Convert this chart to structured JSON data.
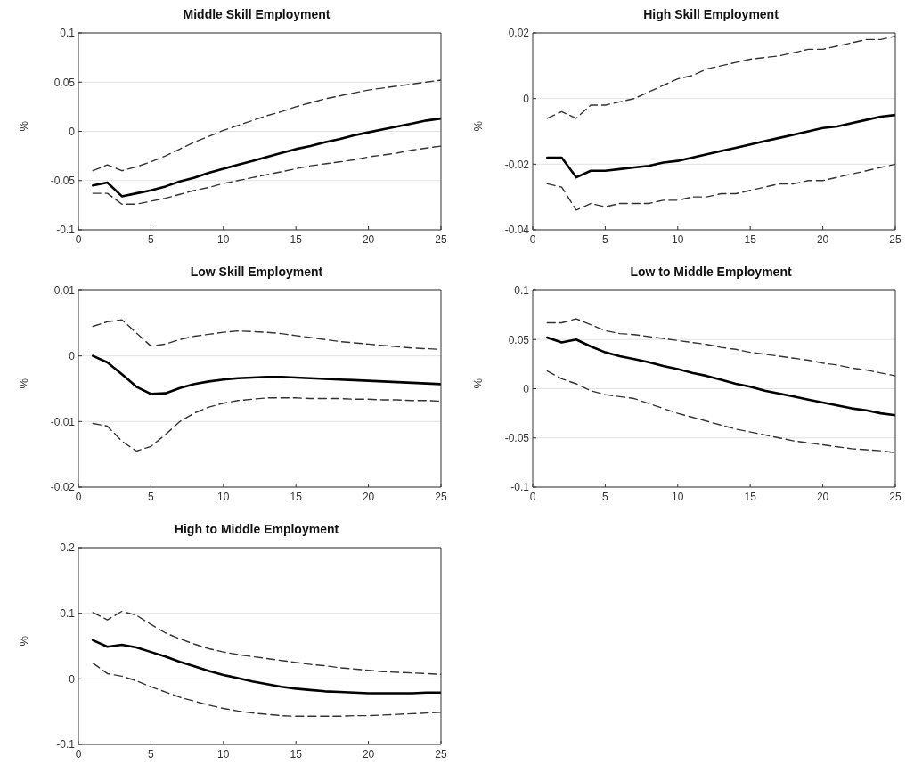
{
  "chart_data": [
    {
      "type": "line",
      "title": "Middle Skill Employment",
      "ylabel": "%",
      "x": [
        1,
        2,
        3,
        4,
        5,
        6,
        7,
        8,
        9,
        10,
        11,
        12,
        13,
        14,
        15,
        16,
        17,
        18,
        19,
        20,
        21,
        22,
        23,
        24,
        25
      ],
      "xlim": [
        0,
        25
      ],
      "xticks": [
        0,
        5,
        10,
        15,
        20,
        25
      ],
      "ylim": [
        -0.1,
        0.1
      ],
      "yticks": [
        -0.1,
        -0.05,
        0,
        0.05,
        0.1
      ],
      "grid": "y",
      "legend": false,
      "series": [
        {
          "type": "line",
          "line_style": "dashed",
          "color": "#333333",
          "values": [
            -0.04,
            -0.034,
            -0.04,
            -0.036,
            -0.031,
            -0.025,
            -0.018,
            -0.011,
            -0.005,
            0.001,
            0.006,
            0.011,
            0.016,
            0.02,
            0.025,
            0.029,
            0.033,
            0.036,
            0.039,
            0.042,
            0.044,
            0.046,
            0.048,
            0.05,
            0.052
          ]
        },
        {
          "type": "line",
          "line_style": "solid",
          "color": "#000000",
          "values": [
            -0.055,
            -0.052,
            -0.066,
            -0.063,
            -0.06,
            -0.056,
            -0.051,
            -0.047,
            -0.042,
            -0.038,
            -0.034,
            -0.03,
            -0.026,
            -0.022,
            -0.018,
            -0.015,
            -0.011,
            -0.008,
            -0.004,
            -0.001,
            0.002,
            0.005,
            0.008,
            0.011,
            0.013
          ]
        },
        {
          "type": "line",
          "line_style": "dashed",
          "color": "#333333",
          "values": [
            -0.063,
            -0.063,
            -0.074,
            -0.074,
            -0.071,
            -0.068,
            -0.064,
            -0.06,
            -0.057,
            -0.053,
            -0.05,
            -0.047,
            -0.044,
            -0.041,
            -0.038,
            -0.035,
            -0.033,
            -0.031,
            -0.029,
            -0.026,
            -0.024,
            -0.022,
            -0.019,
            -0.017,
            -0.015
          ]
        }
      ]
    },
    {
      "type": "line",
      "title": "High Skill Employment",
      "ylabel": "%",
      "x": [
        1,
        2,
        3,
        4,
        5,
        6,
        7,
        8,
        9,
        10,
        11,
        12,
        13,
        14,
        15,
        16,
        17,
        18,
        19,
        20,
        21,
        22,
        23,
        24,
        25
      ],
      "xlim": [
        0,
        25
      ],
      "xticks": [
        0,
        5,
        10,
        15,
        20,
        25
      ],
      "ylim": [
        -0.04,
        0.02
      ],
      "yticks": [
        -0.04,
        -0.02,
        0,
        0.02
      ],
      "grid": "y",
      "legend": false,
      "series": [
        {
          "type": "line",
          "line_style": "dashed",
          "color": "#333333",
          "values": [
            -0.006,
            -0.004,
            -0.006,
            -0.002,
            -0.002,
            -0.001,
            0.0,
            0.002,
            0.004,
            0.006,
            0.007,
            0.009,
            0.01,
            0.011,
            0.012,
            0.0125,
            0.013,
            0.014,
            0.015,
            0.015,
            0.016,
            0.017,
            0.018,
            0.018,
            0.019
          ]
        },
        {
          "type": "line",
          "line_style": "solid",
          "color": "#000000",
          "values": [
            -0.018,
            -0.018,
            -0.024,
            -0.022,
            -0.022,
            -0.0215,
            -0.021,
            -0.0205,
            -0.0195,
            -0.019,
            -0.018,
            -0.017,
            -0.016,
            -0.015,
            -0.014,
            -0.013,
            -0.012,
            -0.011,
            -0.01,
            -0.009,
            -0.0085,
            -0.0075,
            -0.0065,
            -0.0055,
            -0.005
          ]
        },
        {
          "type": "line",
          "line_style": "dashed",
          "color": "#333333",
          "values": [
            -0.026,
            -0.027,
            -0.034,
            -0.032,
            -0.033,
            -0.032,
            -0.032,
            -0.032,
            -0.031,
            -0.031,
            -0.03,
            -0.03,
            -0.029,
            -0.029,
            -0.028,
            -0.027,
            -0.026,
            -0.026,
            -0.025,
            -0.025,
            -0.024,
            -0.023,
            -0.022,
            -0.021,
            -0.02
          ]
        }
      ]
    },
    {
      "type": "line",
      "title": "Low Skill Employment",
      "ylabel": "%",
      "x": [
        1,
        2,
        3,
        4,
        5,
        6,
        7,
        8,
        9,
        10,
        11,
        12,
        13,
        14,
        15,
        16,
        17,
        18,
        19,
        20,
        21,
        22,
        23,
        24,
        25
      ],
      "xlim": [
        0,
        25
      ],
      "xticks": [
        0,
        5,
        10,
        15,
        20,
        25
      ],
      "ylim": [
        -0.02,
        0.01
      ],
      "yticks": [
        -0.02,
        -0.01,
        0,
        0.01
      ],
      "grid": "y",
      "legend": false,
      "series": [
        {
          "type": "line",
          "line_style": "dashed",
          "color": "#333333",
          "values": [
            0.0045,
            0.0052,
            0.0055,
            0.0035,
            0.0015,
            0.0018,
            0.0025,
            0.003,
            0.0033,
            0.0036,
            0.0038,
            0.0037,
            0.0036,
            0.0034,
            0.0031,
            0.0028,
            0.0025,
            0.0022,
            0.002,
            0.0018,
            0.0016,
            0.0014,
            0.0012,
            0.0011,
            0.001
          ]
        },
        {
          "type": "line",
          "line_style": "solid",
          "color": "#000000",
          "values": [
            0.0,
            -0.001,
            -0.0028,
            -0.0047,
            -0.0058,
            -0.0057,
            -0.0049,
            -0.0043,
            -0.0039,
            -0.0036,
            -0.0034,
            -0.0033,
            -0.0032,
            -0.0032,
            -0.0033,
            -0.0034,
            -0.0035,
            -0.0036,
            -0.0037,
            -0.0038,
            -0.0039,
            -0.004,
            -0.0041,
            -0.0042,
            -0.0043
          ]
        },
        {
          "type": "line",
          "line_style": "dashed",
          "color": "#333333",
          "values": [
            -0.0103,
            -0.0107,
            -0.013,
            -0.0145,
            -0.0138,
            -0.012,
            -0.01,
            -0.0087,
            -0.0078,
            -0.0072,
            -0.0068,
            -0.0066,
            -0.0064,
            -0.0064,
            -0.0064,
            -0.0065,
            -0.0065,
            -0.0065,
            -0.0066,
            -0.0066,
            -0.0067,
            -0.0067,
            -0.0068,
            -0.0068,
            -0.0069
          ]
        }
      ]
    },
    {
      "type": "line",
      "title": "Low to Middle Employment",
      "ylabel": "%",
      "x": [
        1,
        2,
        3,
        4,
        5,
        6,
        7,
        8,
        9,
        10,
        11,
        12,
        13,
        14,
        15,
        16,
        17,
        18,
        19,
        20,
        21,
        22,
        23,
        24,
        25
      ],
      "xlim": [
        0,
        25
      ],
      "xticks": [
        0,
        5,
        10,
        15,
        20,
        25
      ],
      "ylim": [
        -0.1,
        0.1
      ],
      "yticks": [
        -0.1,
        -0.05,
        0,
        0.05,
        0.1
      ],
      "grid": "y",
      "legend": false,
      "series": [
        {
          "type": "line",
          "line_style": "dashed",
          "color": "#333333",
          "values": [
            0.067,
            0.067,
            0.071,
            0.065,
            0.059,
            0.056,
            0.055,
            0.053,
            0.051,
            0.049,
            0.047,
            0.045,
            0.042,
            0.04,
            0.037,
            0.035,
            0.033,
            0.031,
            0.029,
            0.026,
            0.024,
            0.021,
            0.019,
            0.016,
            0.013
          ]
        },
        {
          "type": "line",
          "line_style": "solid",
          "color": "#000000",
          "values": [
            0.052,
            0.047,
            0.05,
            0.043,
            0.037,
            0.033,
            0.03,
            0.027,
            0.023,
            0.02,
            0.016,
            0.013,
            0.009,
            0.005,
            0.002,
            -0.002,
            -0.005,
            -0.008,
            -0.011,
            -0.014,
            -0.017,
            -0.02,
            -0.022,
            -0.025,
            -0.027
          ]
        },
        {
          "type": "line",
          "line_style": "dashed",
          "color": "#333333",
          "values": [
            0.018,
            0.01,
            0.005,
            -0.002,
            -0.006,
            -0.008,
            -0.01,
            -0.015,
            -0.02,
            -0.025,
            -0.029,
            -0.033,
            -0.037,
            -0.041,
            -0.044,
            -0.047,
            -0.05,
            -0.053,
            -0.055,
            -0.057,
            -0.059,
            -0.061,
            -0.062,
            -0.063,
            -0.065
          ]
        }
      ]
    },
    {
      "type": "line",
      "title": "High to Middle Employment",
      "ylabel": "%",
      "x": [
        1,
        2,
        3,
        4,
        5,
        6,
        7,
        8,
        9,
        10,
        11,
        12,
        13,
        14,
        15,
        16,
        17,
        18,
        19,
        20,
        21,
        22,
        23,
        24,
        25
      ],
      "xlim": [
        0,
        25
      ],
      "xticks": [
        0,
        5,
        10,
        15,
        20,
        25
      ],
      "ylim": [
        -0.1,
        0.2
      ],
      "yticks": [
        -0.1,
        0,
        0.1,
        0.2
      ],
      "grid": "y",
      "legend": false,
      "series": [
        {
          "type": "line",
          "line_style": "dashed",
          "color": "#333333",
          "values": [
            0.101,
            0.09,
            0.103,
            0.097,
            0.083,
            0.07,
            0.061,
            0.053,
            0.046,
            0.041,
            0.037,
            0.034,
            0.031,
            0.028,
            0.025,
            0.022,
            0.02,
            0.017,
            0.015,
            0.013,
            0.011,
            0.01,
            0.009,
            0.008,
            0.007
          ]
        },
        {
          "type": "line",
          "line_style": "solid",
          "color": "#000000",
          "values": [
            0.059,
            0.049,
            0.052,
            0.048,
            0.041,
            0.034,
            0.026,
            0.019,
            0.012,
            0.006,
            0.001,
            -0.004,
            -0.008,
            -0.012,
            -0.015,
            -0.017,
            -0.019,
            -0.02,
            -0.021,
            -0.022,
            -0.022,
            -0.022,
            -0.022,
            -0.021,
            -0.021
          ]
        },
        {
          "type": "line",
          "line_style": "dashed",
          "color": "#333333",
          "values": [
            0.024,
            0.008,
            0.004,
            -0.003,
            -0.012,
            -0.02,
            -0.028,
            -0.034,
            -0.04,
            -0.045,
            -0.049,
            -0.052,
            -0.054,
            -0.056,
            -0.057,
            -0.057,
            -0.057,
            -0.057,
            -0.056,
            -0.056,
            -0.055,
            -0.054,
            -0.053,
            -0.052,
            -0.051
          ]
        }
      ]
    }
  ]
}
